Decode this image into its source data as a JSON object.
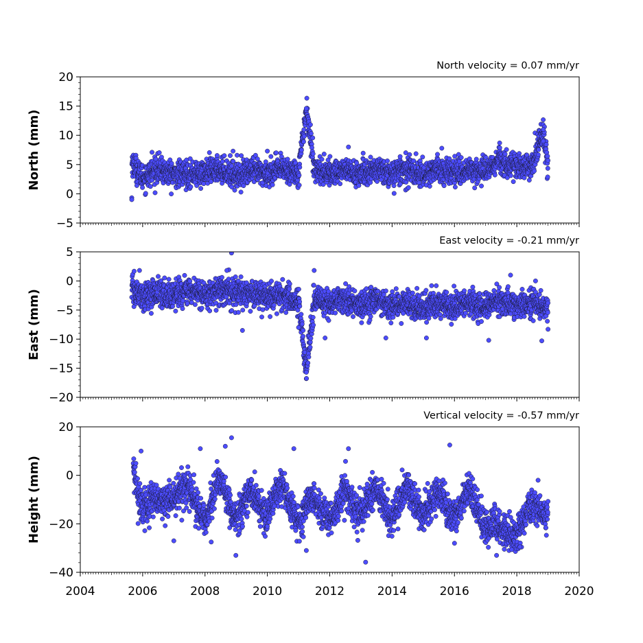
{
  "chart_data": [
    {
      "type": "scatter",
      "title": "North velocity = 0.07 mm/yr",
      "xlabel": "",
      "ylabel": "North (mm)",
      "xlim": [
        2004,
        2020
      ],
      "ylim": [
        -5,
        20
      ],
      "yticks": [
        "−5",
        "0",
        "5",
        "10",
        "15",
        "20"
      ],
      "ytick_values": [
        -5,
        0,
        5,
        10,
        15,
        20
      ],
      "x": [
        2005.65,
        2005.65,
        2006.0,
        2006.5,
        2007.0,
        2007.5,
        2008.0,
        2008.5,
        2009.0,
        2009.5,
        2010.0,
        2010.5,
        2011.0,
        2011.25,
        2011.5,
        2012.0,
        2012.5,
        2013.0,
        2013.5,
        2014.0,
        2014.5,
        2015.0,
        2015.5,
        2016.0,
        2016.5,
        2017.0,
        2017.45,
        2018.0,
        2018.5,
        2018.85,
        2019.0
      ],
      "y": [
        -1.0,
        5.5,
        3.0,
        4.0,
        3.5,
        3.2,
        3.8,
        4.0,
        3.5,
        3.6,
        3.8,
        4.0,
        3.9,
        14.6,
        4.2,
        3.7,
        3.9,
        3.6,
        3.8,
        3.7,
        3.9,
        3.6,
        3.9,
        4.0,
        3.8,
        4.3,
        5.6,
        4.6,
        4.8,
        11.0,
        4.5
      ],
      "n_points": 4700,
      "trend": {
        "start": 3.2,
        "end": 4.5
      },
      "noise_sd": 1.1,
      "seasonal_amplitude": 0.4,
      "outliers": [
        [
          2011.25,
          14.6
        ],
        [
          2018.85,
          11.0
        ],
        [
          2018.85,
          9.0
        ],
        [
          2005.65,
          -1.0
        ],
        [
          2012.6,
          8.0
        ],
        [
          2017.45,
          8.7
        ],
        [
          2008.9,
          7.3
        ],
        [
          2010.0,
          7.3
        ],
        [
          2006.3,
          7.1
        ]
      ],
      "marker_color": "#4c4cff",
      "marker_edge": "#1a1a33",
      "grid": false
    },
    {
      "type": "scatter",
      "title": "East velocity = -0.21 mm/yr",
      "xlabel": "",
      "ylabel": "East (mm)",
      "xlim": [
        2004,
        2020
      ],
      "ylim": [
        -20,
        5
      ],
      "yticks": [
        "−20",
        "−15",
        "−10",
        "−5",
        "0",
        "5"
      ],
      "ytick_values": [
        -20,
        -15,
        -10,
        -5,
        0,
        5
      ],
      "x": [
        2005.65,
        2006.0,
        2006.5,
        2007.0,
        2007.5,
        2008.0,
        2008.5,
        2009.0,
        2009.5,
        2010.0,
        2010.5,
        2011.0,
        2011.25,
        2011.5,
        2012.0,
        2012.5,
        2013.0,
        2013.5,
        2014.0,
        2014.5,
        2015.0,
        2015.5,
        2016.0,
        2016.5,
        2017.0,
        2017.5,
        2018.0,
        2018.5,
        2019.0
      ],
      "y": [
        -1.5,
        -2.5,
        -2.3,
        -2.2,
        -2.0,
        -2.0,
        -1.8,
        -2.0,
        -2.3,
        -2.6,
        -3.0,
        -3.2,
        -15.7,
        -3.5,
        -3.6,
        -3.7,
        -3.8,
        -3.8,
        -4.0,
        -4.2,
        -4.3,
        -4.2,
        -4.0,
        -4.2,
        -4.0,
        -3.9,
        -3.9,
        -4.0,
        -4.2
      ],
      "n_points": 4700,
      "trend": {
        "start": -1.6,
        "end": -4.3
      },
      "noise_sd": 1.2,
      "seasonal_amplitude": 0.5,
      "outliers": [
        [
          2011.25,
          -15.7
        ],
        [
          2008.85,
          4.8
        ],
        [
          2008.7,
          1.8
        ],
        [
          2005.9,
          1.8
        ],
        [
          2011.5,
          1.8
        ],
        [
          2009.2,
          -8.5
        ],
        [
          2011.0,
          -8.0
        ],
        [
          2011.85,
          -9.8
        ],
        [
          2013.8,
          -9.8
        ],
        [
          2015.1,
          -9.8
        ],
        [
          2017.1,
          -10.2
        ],
        [
          2018.8,
          -10.3
        ],
        [
          2019.0,
          -8.3
        ],
        [
          2017.8,
          1.0
        ],
        [
          2018.6,
          0.0
        ]
      ],
      "marker_color": "#4c4cff",
      "marker_edge": "#1a1a33",
      "grid": false
    },
    {
      "type": "scatter",
      "title": "Vertical velocity = -0.57 mm/yr",
      "xlabel": "",
      "ylabel": "Height (mm)",
      "xlim": [
        2004,
        2020
      ],
      "ylim": [
        -40,
        20
      ],
      "yticks": [
        "−40",
        "−20",
        "0",
        "20"
      ],
      "ytick_values": [
        -40,
        -20,
        0,
        20
      ],
      "xticks": [
        "2004",
        "2006",
        "2008",
        "2010",
        "2012",
        "2014",
        "2016",
        "2018",
        "2020"
      ],
      "xtick_values": [
        2004,
        2006,
        2008,
        2010,
        2012,
        2014,
        2016,
        2018,
        2020
      ],
      "x": [
        2005.7,
        2006.0,
        2006.5,
        2007.0,
        2007.5,
        2008.0,
        2008.5,
        2009.0,
        2009.5,
        2010.0,
        2010.5,
        2011.0,
        2011.5,
        2012.0,
        2012.5,
        2013.0,
        2013.5,
        2014.0,
        2014.5,
        2015.0,
        2015.5,
        2016.0,
        2016.5,
        2017.0,
        2017.5,
        2018.0,
        2018.5,
        2019.0
      ],
      "y": [
        2.0,
        -10.0,
        -15.0,
        -5.0,
        -10.0,
        -15.0,
        -5.0,
        -15.0,
        -10.0,
        -12.0,
        -8.0,
        -17.0,
        -12.0,
        -15.0,
        -10.0,
        -13.0,
        -9.0,
        -14.0,
        -8.0,
        -13.0,
        -11.0,
        -14.0,
        -9.0,
        -18.0,
        -25.0,
        -20.0,
        -16.0,
        -12.0
      ],
      "n_points": 4700,
      "trend": {
        "start": -6.0,
        "end": -14.0
      },
      "noise_sd": 3.6,
      "seasonal_amplitude": 6.0,
      "outliers": [
        [
          2008.85,
          15.5
        ],
        [
          2008.65,
          12.0
        ],
        [
          2015.85,
          12.5
        ],
        [
          2012.6,
          11.0
        ],
        [
          2010.85,
          11.0
        ],
        [
          2007.85,
          11.0
        ],
        [
          2005.95,
          10.0
        ],
        [
          2013.15,
          -35.8
        ],
        [
          2008.99,
          -33.0
        ],
        [
          2011.25,
          -31.0
        ],
        [
          2017.35,
          -33.0
        ],
        [
          2017.6,
          -30.5
        ],
        [
          2018.1,
          -29.5
        ],
        [
          2007.0,
          -27.0
        ],
        [
          2008.2,
          -27.5
        ],
        [
          2016.0,
          -28.0
        ]
      ],
      "marker_color": "#4c4cff",
      "marker_edge": "#1a1a33",
      "grid": false
    }
  ]
}
